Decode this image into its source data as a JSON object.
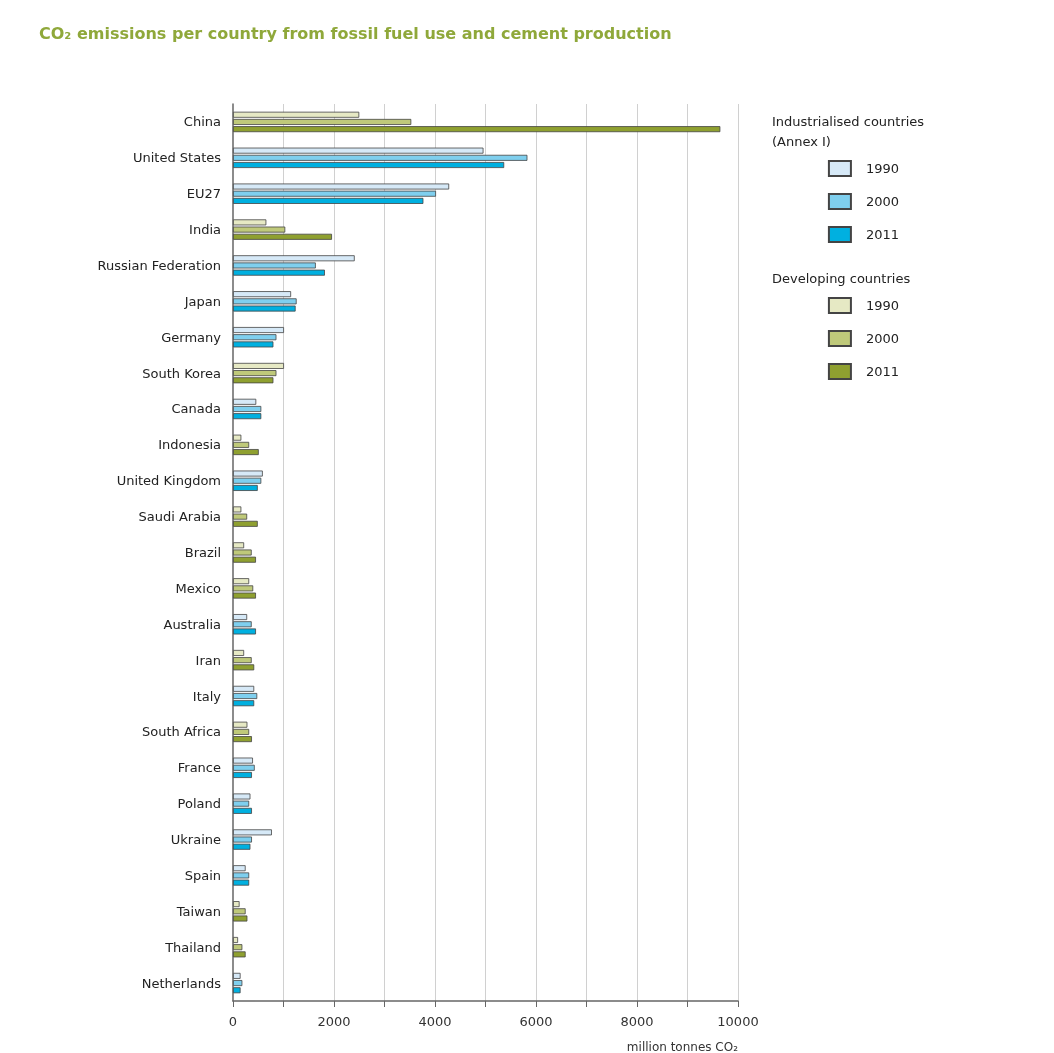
{
  "chart_data": {
    "type": "bar",
    "orientation": "horizontal",
    "title": "CO₂ emissions per country from fossil fuel use and cement production",
    "xlabel": "million tonnes CO₂",
    "categories": [
      "China",
      "United States",
      "EU27",
      "India",
      "Russian Federation",
      "Japan",
      "Germany",
      "South Korea",
      "Canada",
      "Indonesia",
      "United Kingdom",
      "Saudi Arabia",
      "Brazil",
      "Mexico",
      "Australia",
      "Iran",
      "Italy",
      "South Africa",
      "France",
      "Poland",
      "Ukraine",
      "Spain",
      "Taiwan",
      "Thailand",
      "Netherlands"
    ],
    "series": [
      {
        "name": "1990",
        "color": "#d6e9f7",
        "values": [
          null,
          4960,
          4280,
          null,
          2410,
          1150,
          1010,
          null,
          460,
          null,
          590,
          null,
          null,
          null,
          280,
          null,
          420,
          null,
          395,
          345,
          770,
          250,
          null,
          null,
          150
        ]
      },
      {
        "name": "2000",
        "color": "#7fcfee",
        "values": [
          null,
          5830,
          4020,
          null,
          1640,
          1260,
          860,
          null,
          560,
          null,
          560,
          null,
          null,
          null,
          370,
          null,
          480,
          null,
          430,
          320,
          375,
          320,
          null,
          null,
          185
        ]
      },
      {
        "name": "2011",
        "color": "#00b0e0",
        "values": [
          null,
          5370,
          3770,
          null,
          1820,
          1240,
          800,
          null,
          560,
          null,
          490,
          null,
          null,
          null,
          455,
          null,
          420,
          null,
          375,
          375,
          345,
          320,
          null,
          null,
          150
        ]
      },
      {
        "name": "1990",
        "color": "#e6e9c4",
        "values": [
          2500,
          null,
          null,
          660,
          null,
          null,
          null,
          1010,
          null,
          165,
          null,
          165,
          220,
          320,
          null,
          220,
          null,
          285,
          null,
          null,
          null,
          null,
          130,
          100,
          null
        ]
      },
      {
        "name": "2000",
        "color": "#bfc97a",
        "values": [
          3530,
          null,
          null,
          1035,
          null,
          null,
          null,
          860,
          null,
          320,
          null,
          280,
          370,
          400,
          null,
          370,
          null,
          320,
          null,
          null,
          null,
          null,
          250,
          185,
          null
        ]
      },
      {
        "name": "2011",
        "color": "#8fa030",
        "values": [
          9650,
          null,
          null,
          1960,
          null,
          null,
          null,
          800,
          null,
          510,
          null,
          490,
          455,
          455,
          null,
          420,
          null,
          375,
          null,
          null,
          null,
          null,
          285,
          250,
          null
        ]
      }
    ],
    "xlim": [
      0,
      10000
    ],
    "xticks": [
      0,
      {
        "value": 1000,
        "label": null
      },
      2000,
      {
        "value": 3000,
        "label": null
      },
      4000,
      {
        "value": 5000,
        "label": null
      },
      6000,
      {
        "value": 7000,
        "label": null
      },
      8000,
      {
        "value": 9000,
        "label": null
      },
      10000
    ],
    "grid": "x",
    "legend": "right",
    "annotations": [
      "Industrialised countries (Annex I)",
      "Developing countries"
    ]
  }
}
